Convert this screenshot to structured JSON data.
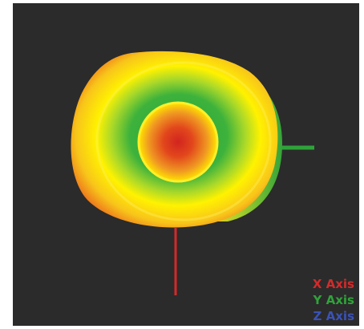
{
  "legend": {
    "x_axis": {
      "label": "X Axis",
      "color": "#d42a2a"
    },
    "y_axis": {
      "label": "Y Axis",
      "color": "#2fa33a"
    },
    "z_axis": {
      "label": "Z Axis",
      "color": "#3a52b8"
    }
  },
  "colors": {
    "background": "#2b2b2b",
    "surface_low": "#e23a1b",
    "surface_mid": "#ffee00",
    "surface_high": "#1fa33c"
  }
}
